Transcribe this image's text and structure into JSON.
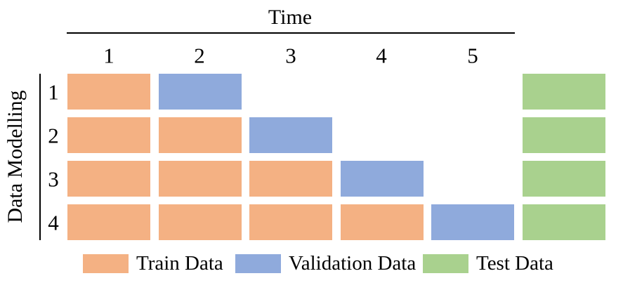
{
  "header": {
    "title": "Time",
    "columns": [
      "1",
      "2",
      "3",
      "4",
      "5"
    ]
  },
  "side": {
    "label": "Data Modelling",
    "rows": [
      "1",
      "2",
      "3",
      "4"
    ]
  },
  "colors": {
    "train": "#F4B183",
    "validation": "#8FAADC",
    "test": "#A9D18E"
  },
  "grid": {
    "cells": [
      [
        "train",
        "validation",
        null,
        null,
        null,
        "test"
      ],
      [
        "train",
        "train",
        "validation",
        null,
        null,
        "test"
      ],
      [
        "train",
        "train",
        "train",
        "validation",
        null,
        "test"
      ],
      [
        "train",
        "train",
        "train",
        "train",
        "validation",
        "test"
      ]
    ]
  },
  "legend": [
    {
      "type": "train",
      "label": "Train Data"
    },
    {
      "type": "validation",
      "label": "Validation Data"
    },
    {
      "type": "test",
      "label": "Test Data"
    }
  ]
}
